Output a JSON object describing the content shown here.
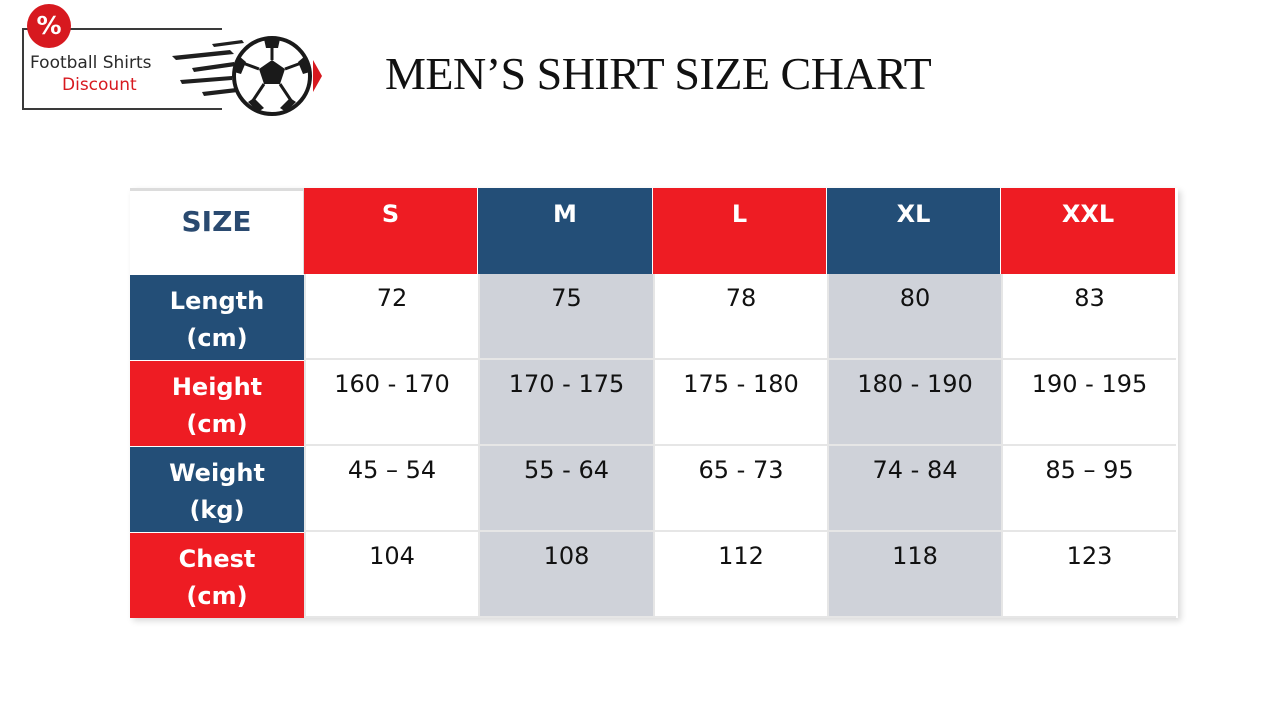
{
  "logo": {
    "badge_symbol": "%",
    "line1": "Football Shirts",
    "line2": "Discount",
    "icon": "soccer-ball-icon",
    "accent_color": "#d7191f"
  },
  "title": "MEN’S SHIRT SIZE CHART",
  "table": {
    "corner_label": "SIZE",
    "sizes": [
      "S",
      "M",
      "L",
      "XL",
      "XXL"
    ],
    "rows": [
      {
        "label_line1": "Length",
        "label_line2": "(cm)",
        "values": [
          "72",
          "75",
          "78",
          "80",
          "83"
        ]
      },
      {
        "label_line1": "Height",
        "label_line2": "(cm)",
        "values": [
          "160 - 170",
          "170 - 175",
          "175 - 180",
          "180 - 190",
          "190 - 195"
        ]
      },
      {
        "label_line1": "Weight",
        "label_line2": "(kg)",
        "values": [
          "45 – 54",
          "55 - 64",
          "65 - 73",
          "74 - 84",
          "85 – 95"
        ]
      },
      {
        "label_line1": "Chest",
        "label_line2": "(cm)",
        "values": [
          "104",
          "108",
          "112",
          "118",
          "123"
        ]
      }
    ]
  },
  "colors": {
    "red": "#ee1c23",
    "navy": "#234e77",
    "shaded_column": "#cfd2d9"
  }
}
